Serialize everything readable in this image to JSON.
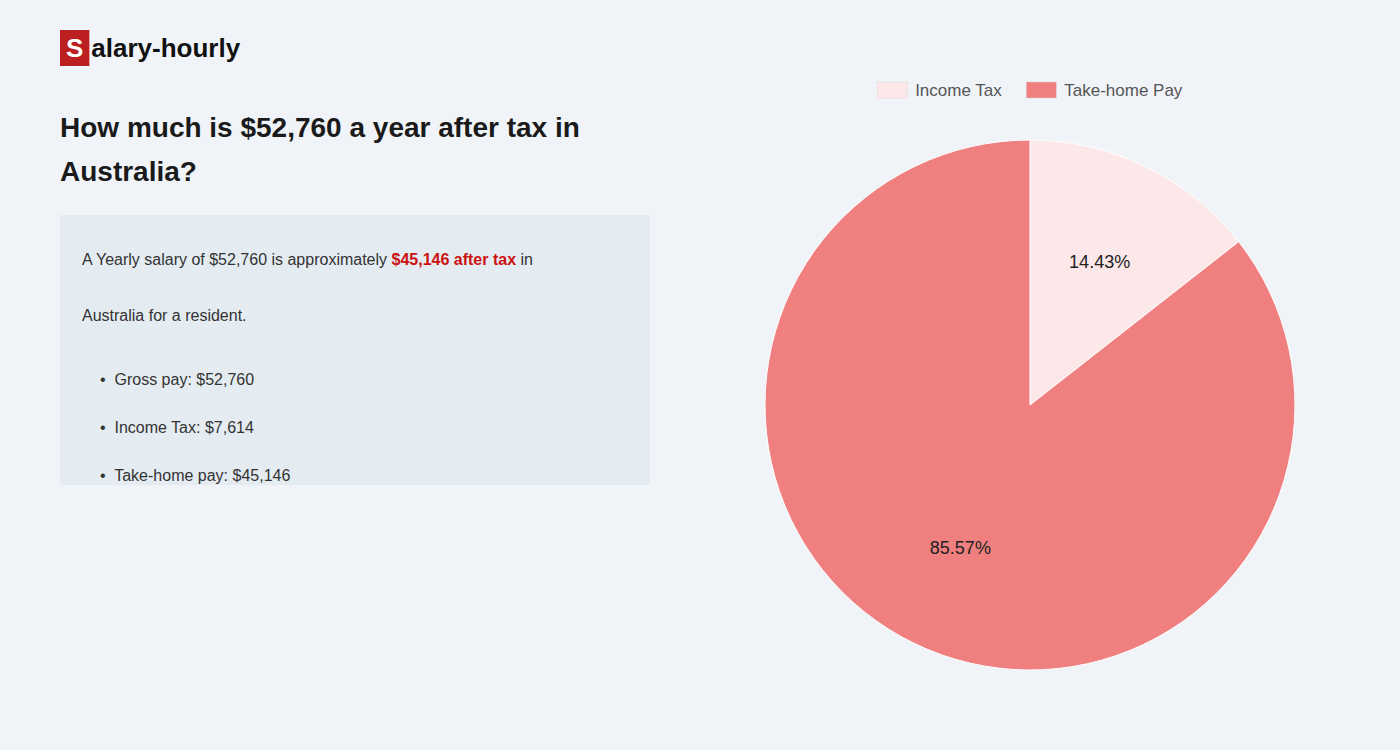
{
  "chart_data": {
    "type": "pie",
    "title": [
      "How much is $52,760 a year after tax in",
      "Australia?"
    ],
    "annotations": [
      "S",
      "alary-hourly",
      "A Yearly salary of $52,760 is approximately ",
      "$45,146 after tax",
      " in",
      "Australia for a resident.",
      "•  Gross pay: $52,760",
      "•  Income Tax: $7,614",
      "•  Take-home pay: $45,146"
    ],
    "categories": [
      "Income Tax",
      "Take-home Pay"
    ],
    "values": [
      14.43,
      85.57
    ],
    "value_labels": [
      "14.43%",
      "85.57%"
    ],
    "colors": [
      "#fce8e8",
      "#f08080"
    ],
    "data_labels": true,
    "legend": "top"
  }
}
